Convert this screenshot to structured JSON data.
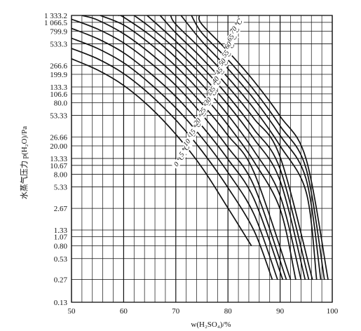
{
  "chart_data": {
    "type": "line",
    "xlabel": "w(H₂SO₄)/%",
    "ylabel": "水蒸气压力 p(H₂O)/Pa",
    "x_ticks": [
      50,
      60,
      70,
      80,
      90,
      100
    ],
    "y_ticks": [
      {
        "v": 1333.2,
        "label": "1 333.2"
      },
      {
        "v": 1066.5,
        "label": "1 066.5"
      },
      {
        "v": 799.9,
        "label": "799.9"
      },
      {
        "v": 533.3,
        "label": "533.3"
      },
      {
        "v": 266.6,
        "label": "266.6"
      },
      {
        "v": 199.9,
        "label": "199.9"
      },
      {
        "v": 133.3,
        "label": "133.3"
      },
      {
        "v": 106.6,
        "label": "106.6"
      },
      {
        "v": 80.0,
        "label": "80.0"
      },
      {
        "v": 53.33,
        "label": "53.33"
      },
      {
        "v": 26.66,
        "label": "26.66"
      },
      {
        "v": 20.0,
        "label": "20.00"
      },
      {
        "v": 13.33,
        "label": "13.33"
      },
      {
        "v": 10.67,
        "label": "10.67"
      },
      {
        "v": 8.0,
        "label": "8.00"
      },
      {
        "v": 5.33,
        "label": "5.33"
      },
      {
        "v": 2.67,
        "label": "2.67"
      },
      {
        "v": 1.33,
        "label": "1.33"
      },
      {
        "v": 1.07,
        "label": "1.07"
      },
      {
        "v": 0.8,
        "label": "0.80"
      },
      {
        "v": 0.53,
        "label": "0.53"
      },
      {
        "v": 0.27,
        "label": "0.27"
      },
      {
        "v": 0.13,
        "label": "0.13"
      }
    ],
    "xlim": [
      50,
      100
    ],
    "ylim": [
      0.13,
      1333.2
    ],
    "y_scale": "log",
    "grid": true,
    "series": [
      {
        "name": "0 ℃",
        "x": [
          50,
          55,
          60,
          65,
          70,
          75,
          80,
          84.5
        ],
        "y": [
          330,
          230,
          140,
          70,
          29,
          10,
          2.7,
          0.8
        ]
      },
      {
        "name": "5 ℃",
        "x": [
          50,
          55,
          60,
          65,
          70,
          75,
          80,
          85,
          88.5
        ],
        "y": [
          460,
          330,
          205,
          105,
          46,
          17,
          5.2,
          1.3,
          0.27
        ]
      },
      {
        "name": "10 ℃",
        "x": [
          50,
          55,
          60,
          65,
          70,
          75,
          80,
          85,
          89.5
        ],
        "y": [
          640,
          460,
          290,
          150,
          68,
          26,
          8.5,
          2.2,
          0.27
        ]
      },
      {
        "name": "15 ℃",
        "x": [
          50,
          55,
          60,
          65,
          70,
          75,
          80,
          85,
          90.5
        ],
        "y": [
          880,
          630,
          400,
          210,
          98,
          38,
          13,
          3.6,
          0.27
        ]
      },
      {
        "name": "20 ℃",
        "x": [
          50,
          55,
          60,
          65,
          70,
          75,
          80,
          85,
          91.2
        ],
        "y": [
          1180,
          860,
          550,
          295,
          140,
          55,
          19,
          5.5,
          0.27
        ]
      },
      {
        "name": "25 ℃",
        "x": [
          52,
          55,
          60,
          65,
          70,
          75,
          80,
          85,
          92
        ],
        "y": [
          1333.2,
          1150,
          740,
          400,
          190,
          78,
          28,
          8.5,
          0.27
        ]
      },
      {
        "name": "30 ℃",
        "x": [
          55.5,
          60,
          65,
          70,
          75,
          80,
          85,
          90,
          93
        ],
        "y": [
          1333.2,
          980,
          540,
          260,
          108,
          39,
          12,
          2.6,
          0.27
        ]
      },
      {
        "name": "35 ℃",
        "x": [
          59,
          60,
          65,
          70,
          75,
          80,
          85,
          90,
          94
        ],
        "y": [
          1333.2,
          1260,
          710,
          345,
          145,
          54,
          17,
          4,
          0.27
        ]
      },
      {
        "name": "40 ℃",
        "x": [
          62,
          65,
          70,
          75,
          80,
          85,
          90,
          94.8
        ],
        "y": [
          1333.2,
          920,
          450,
          195,
          75,
          25,
          6.5,
          0.27
        ]
      },
      {
        "name": "45 ℃",
        "x": [
          64.5,
          70,
          75,
          80,
          85,
          90,
          95.5
        ],
        "y": [
          1333.2,
          580,
          255,
          100,
          34,
          9.5,
          0.27
        ]
      },
      {
        "name": "50 ℃",
        "x": [
          67,
          70,
          75,
          80,
          85,
          90,
          96.2
        ],
        "y": [
          1333.2,
          760,
          335,
          135,
          48,
          14,
          0.27
        ]
      },
      {
        "name": "55 ℃",
        "x": [
          69,
          70,
          75,
          80,
          85,
          90,
          95,
          97
        ],
        "y": [
          1333.2,
          1000,
          440,
          180,
          66,
          20,
          4.5,
          0.27
        ]
      },
      {
        "name": "60 ℃",
        "x": [
          71,
          75,
          80,
          85,
          90,
          95,
          97.8
        ],
        "y": [
          1333.2,
          580,
          240,
          90,
          28,
          6.8,
          0.27
        ]
      },
      {
        "name": "65 ℃",
        "x": [
          73,
          75,
          80,
          85,
          90,
          95,
          98.5
        ],
        "y": [
          1333.2,
          760,
          320,
          120,
          38,
          9.5,
          0.27
        ]
      },
      {
        "name": "70 ℃",
        "x": [
          74.5,
          75,
          80,
          85,
          90,
          95,
          99.2
        ],
        "y": [
          1333.2,
          1000,
          420,
          160,
          52,
          13,
          0.27
        ]
      }
    ],
    "curve_labels": [
      {
        "text": "0 ℃",
        "x": 71,
        "y": 12.0
      },
      {
        "text": "5 ℃",
        "x": 72,
        "y": 16.5
      },
      {
        "text": "10 ℃",
        "x": 73,
        "y": 24
      },
      {
        "text": "15 ℃",
        "x": 74,
        "y": 33
      },
      {
        "text": "20 ℃",
        "x": 75,
        "y": 47
      },
      {
        "text": "25 ℃",
        "x": 76,
        "y": 66
      },
      {
        "text": "30 ℃",
        "x": 77,
        "y": 92
      },
      {
        "text": "35 ℃",
        "x": 77.8,
        "y": 130
      },
      {
        "text": "40 ℃",
        "x": 78.5,
        "y": 180
      },
      {
        "text": "45 ℃",
        "x": 79.2,
        "y": 240
      },
      {
        "text": "50 ℃",
        "x": 79.8,
        "y": 320
      },
      {
        "text": "55 ℃",
        "x": 80.4,
        "y": 420
      },
      {
        "text": "60 ℃",
        "x": 80.9,
        "y": 550
      },
      {
        "text": "65 ℃",
        "x": 81.4,
        "y": 700
      },
      {
        "text": "70 ℃",
        "x": 81.9,
        "y": 900
      }
    ]
  }
}
